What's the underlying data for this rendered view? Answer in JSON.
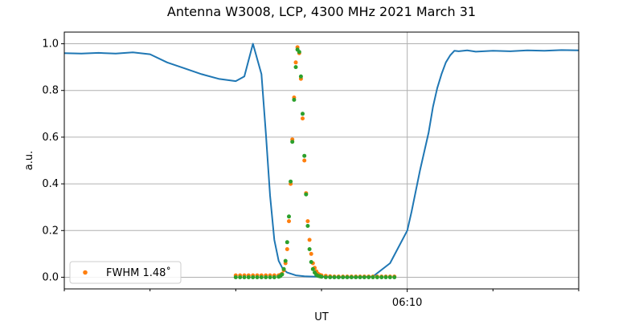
{
  "chart_data": {
    "type": "line",
    "title": "Antenna W3008, LCP, 4300 MHz 2021 March 31",
    "xlabel": "UT",
    "ylabel": "a.u.",
    "x_unit": "minutes UT",
    "xlim": [
      6.0,
      12.0
    ],
    "ylim": [
      -0.05,
      1.05
    ],
    "yticks": [
      0.0,
      0.2,
      0.4,
      0.6,
      0.8,
      1.0
    ],
    "ytick_labels": [
      "0.0",
      "0.2",
      "0.4",
      "0.6",
      "0.8",
      "1.0"
    ],
    "xticks_major": [
      {
        "value": 10.0,
        "label": "06:10"
      }
    ],
    "xticks_minor": [
      6.0,
      7.0,
      8.0,
      9.0,
      11.0,
      12.0
    ],
    "grid": true,
    "legend_placement": "lower-left",
    "legend": [
      {
        "label": "FWHM 1.48$^{\\circ}$",
        "display": "FWHM 1.48˚",
        "series": "fit"
      }
    ],
    "colors": {
      "line": "#1f77b4",
      "fit": "#ff7f0e",
      "points": "#2ca02c",
      "grid": "#b0b0b0"
    },
    "series": [
      {
        "id": "line",
        "style": "line",
        "x": [
          6.0,
          6.2,
          6.4,
          6.6,
          6.8,
          7.0,
          7.2,
          7.4,
          7.6,
          7.8,
          8.0,
          8.1,
          8.2,
          8.3,
          8.35,
          8.4,
          8.45,
          8.5,
          8.55,
          8.6,
          8.7,
          8.8,
          8.9,
          9.0,
          9.1,
          9.2,
          9.3,
          9.4,
          9.6,
          9.8,
          10.0,
          10.05,
          10.15,
          10.25,
          10.3,
          10.35,
          10.4,
          10.45,
          10.5,
          10.55,
          10.6,
          10.7,
          10.8,
          11.0,
          11.2,
          11.4,
          11.6,
          11.8,
          12.0
        ],
        "y": [
          0.96,
          0.958,
          0.961,
          0.958,
          0.963,
          0.955,
          0.92,
          0.895,
          0.87,
          0.85,
          0.84,
          0.86,
          1.0,
          0.87,
          0.62,
          0.35,
          0.16,
          0.07,
          0.035,
          0.02,
          0.008,
          0.004,
          0.003,
          0.002,
          0.001,
          0.0,
          0.0,
          0.0,
          0.003,
          0.06,
          0.2,
          0.28,
          0.46,
          0.62,
          0.73,
          0.81,
          0.87,
          0.92,
          0.95,
          0.97,
          0.968,
          0.972,
          0.966,
          0.97,
          0.968,
          0.972,
          0.97,
          0.973,
          0.972
        ]
      },
      {
        "id": "fit",
        "style": "markers",
        "name": "FWHM 1.48˚",
        "x": [
          8.0,
          8.05,
          8.1,
          8.15,
          8.2,
          8.25,
          8.3,
          8.35,
          8.4,
          8.45,
          8.5,
          8.52,
          8.54,
          8.56,
          8.58,
          8.6,
          8.62,
          8.64,
          8.66,
          8.68,
          8.7,
          8.72,
          8.74,
          8.76,
          8.78,
          8.8,
          8.82,
          8.84,
          8.86,
          8.88,
          8.9,
          8.92,
          8.94,
          8.96,
          8.98,
          9.0,
          9.05,
          9.1,
          9.15,
          9.2,
          9.25,
          9.3,
          9.35,
          9.4,
          9.45,
          9.5,
          9.55,
          9.6,
          9.65,
          9.7,
          9.75,
          9.8,
          9.85
        ],
        "y": [
          0.008,
          0.008,
          0.008,
          0.008,
          0.008,
          0.008,
          0.008,
          0.008,
          0.008,
          0.008,
          0.008,
          0.01,
          0.015,
          0.03,
          0.06,
          0.12,
          0.24,
          0.4,
          0.59,
          0.77,
          0.92,
          0.985,
          0.96,
          0.85,
          0.68,
          0.5,
          0.36,
          0.24,
          0.16,
          0.1,
          0.06,
          0.04,
          0.025,
          0.015,
          0.01,
          0.008,
          0.006,
          0.004,
          0.003,
          0.003,
          0.003,
          0.003,
          0.003,
          0.003,
          0.003,
          0.003,
          0.003,
          0.003,
          0.003,
          0.003,
          0.003,
          0.003,
          0.003
        ]
      },
      {
        "id": "points",
        "style": "markers",
        "x": [
          8.0,
          8.05,
          8.1,
          8.15,
          8.2,
          8.25,
          8.3,
          8.35,
          8.4,
          8.45,
          8.5,
          8.52,
          8.54,
          8.56,
          8.58,
          8.6,
          8.62,
          8.64,
          8.66,
          8.68,
          8.7,
          8.72,
          8.74,
          8.76,
          8.78,
          8.8,
          8.82,
          8.84,
          8.86,
          8.88,
          8.9,
          8.92,
          8.94,
          8.96,
          8.98,
          9.0,
          9.05,
          9.1,
          9.15,
          9.2,
          9.25,
          9.3,
          9.35,
          9.4,
          9.45,
          9.5,
          9.55,
          9.6,
          9.65,
          9.7,
          9.75,
          9.8,
          9.85
        ],
        "y": [
          0.0,
          0.0,
          0.0,
          0.0,
          0.0,
          0.0,
          0.0,
          0.0,
          0.0,
          0.0,
          0.002,
          0.005,
          0.012,
          0.035,
          0.07,
          0.15,
          0.26,
          0.41,
          0.58,
          0.76,
          0.9,
          0.975,
          0.965,
          0.86,
          0.7,
          0.52,
          0.355,
          0.22,
          0.12,
          0.065,
          0.035,
          0.02,
          0.01,
          0.006,
          0.004,
          0.002,
          0.0,
          0.0,
          0.0,
          0.0,
          0.0,
          0.0,
          0.0,
          0.0,
          0.0,
          0.0,
          0.0,
          0.0,
          0.0,
          0.0,
          0.0,
          0.0,
          0.0
        ]
      }
    ]
  }
}
